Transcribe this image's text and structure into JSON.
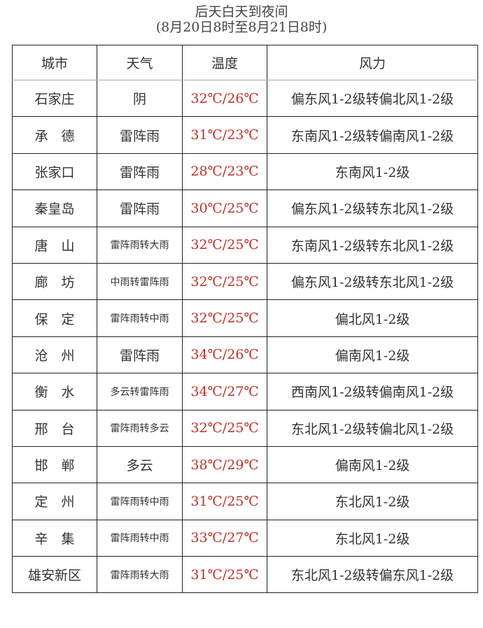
{
  "title": "后天白天到夜间",
  "subtitle": "(8月20日8时至8月21日8时)",
  "columns": [
    "城市",
    "天气",
    "温度",
    "风力"
  ],
  "colors": {
    "temperature": "#c0302a"
  },
  "rows": [
    {
      "city": "石家庄",
      "weather": "阴",
      "temp": "32℃/26℃",
      "wind": "偏东风1-2级转偏北风1-2级"
    },
    {
      "city": "承　德",
      "weather": "雷阵雨",
      "temp": "31℃/23℃",
      "wind": "东南风1-2级转偏南风1-2级"
    },
    {
      "city": "张家口",
      "weather": "雷阵雨",
      "temp": "28℃/23℃",
      "wind": "东南风1-2级"
    },
    {
      "city": "秦皇岛",
      "weather": "雷阵雨",
      "temp": "30℃/25℃",
      "wind": "偏东风1-2级转东北风1-2级"
    },
    {
      "city": "唐　山",
      "weather": "雷阵雨转大雨",
      "temp": "32℃/25℃",
      "wind": "东南风1-2级转东北风1-2级"
    },
    {
      "city": "廊　坊",
      "weather": "中雨转雷阵雨",
      "temp": "32℃/25℃",
      "wind": "偏东风1-2级转东北风1-2级"
    },
    {
      "city": "保　定",
      "weather": "雷阵雨转中雨",
      "temp": "32℃/25℃",
      "wind": "偏北风1-2级"
    },
    {
      "city": "沧　州",
      "weather": "雷阵雨",
      "temp": "34℃/26℃",
      "wind": "偏南风1-2级"
    },
    {
      "city": "衡　水",
      "weather": "多云转雷阵雨",
      "temp": "34℃/27℃",
      "wind": "西南风1-2级转偏南风1-2级"
    },
    {
      "city": "邢　台",
      "weather": "雷阵雨转多云",
      "temp": "32℃/25℃",
      "wind": "东北风1-2级转偏北风1-2级"
    },
    {
      "city": "邯　郸",
      "weather": "多云",
      "temp": "38℃/29℃",
      "wind": "偏南风1-2级"
    },
    {
      "city": "定　州",
      "weather": "雷阵雨转中雨",
      "temp": "31℃/25℃",
      "wind": "东北风1-2级"
    },
    {
      "city": "辛　集",
      "weather": "雷阵雨转中雨",
      "temp": "33℃/27℃",
      "wind": "东北风1-2级"
    },
    {
      "city": "雄安新区",
      "weather": "雷阵雨转大雨",
      "temp": "31℃/25℃",
      "wind": "东北风1-2级转偏东风1-2级"
    }
  ]
}
